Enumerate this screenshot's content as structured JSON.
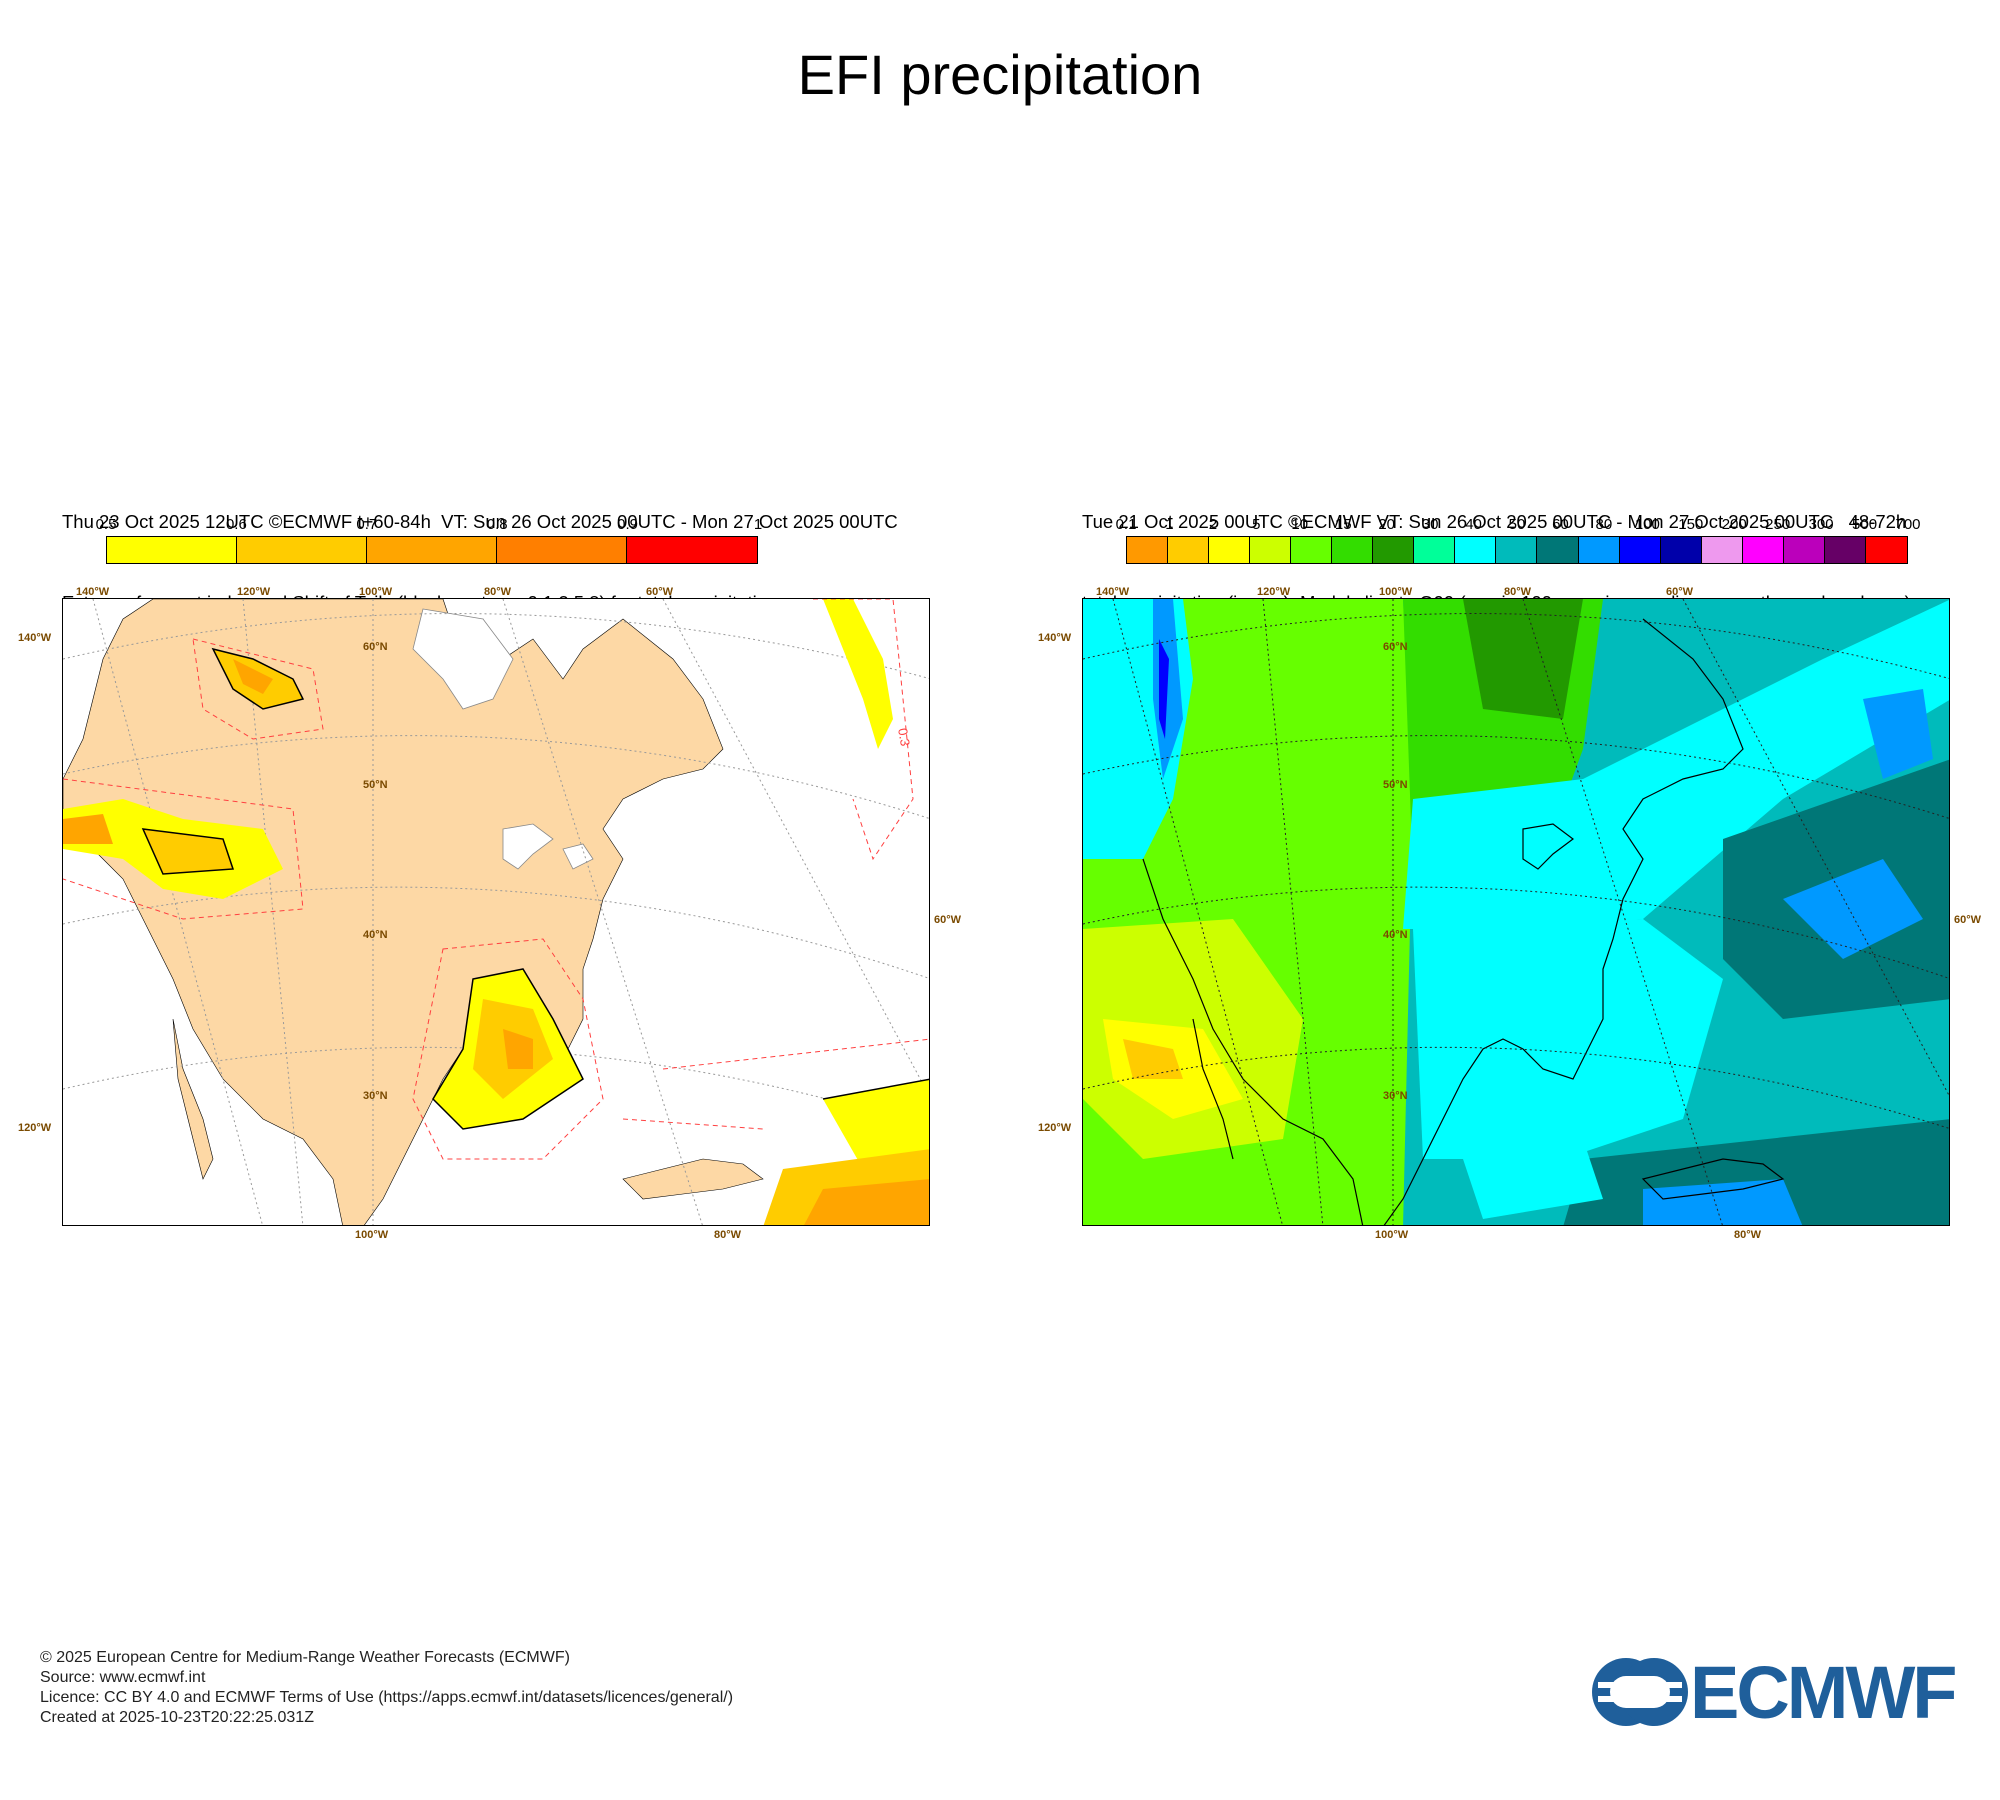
{
  "title": "EFI precipitation",
  "left_panel": {
    "line1": "Thu 23 Oct 2025 12UTC ©ECMWF t+60-84h  VT: Sun 26 Oct 2025 00UTC - Mon 27 Oct 2025 00UTC",
    "line2": "Extreme forecast index and Shift of Tails (black contours 0,1,2,5,8) for total precipitation",
    "colorbar": {
      "labels": [
        "0.5",
        "0.6",
        "0.7",
        "0.8",
        "0.9",
        "1"
      ],
      "colors": [
        "#ffff00",
        "#ffcc00",
        "#ffa500",
        "#ff7f00",
        "#ff0000"
      ]
    },
    "lon_labels_top": [
      "140°W",
      "120°W",
      "100°W",
      "80°W",
      "60°W"
    ],
    "lon_labels_bottom": [
      "100°W",
      "80°W"
    ],
    "lat_labels_inside": [
      "60°N",
      "50°N",
      "40°N",
      "30°N"
    ],
    "side_labels_left": [
      "140°W",
      "120°W"
    ],
    "side_labels_right": [
      "60°W"
    ],
    "contour_label": "0.3"
  },
  "right_panel": {
    "line1": "Tue 21 Oct 2025 00UTC ©ECMWF VT: Sun 26 Oct 2025 00UTC - Mon 27 Oct 2025 00UTC   48-72h",
    "line2": "total precipitation (in mm)  Model climate Q99 (one in 100 occasions realises more than value shown)",
    "colorbar": {
      "labels": [
        "0.1",
        "1",
        "2",
        "5",
        "10",
        "15",
        "20",
        "30",
        "40",
        "50",
        "60",
        "80",
        "100",
        "150",
        "200",
        "250",
        "300",
        "500",
        "700"
      ],
      "colors": [
        "#ff9900",
        "#ffcc00",
        "#ffff00",
        "#ccff00",
        "#66ff00",
        "#33dd00",
        "#229900",
        "#00ff99",
        "#00ffff",
        "#00bbbb",
        "#007777",
        "#0099ff",
        "#0000ff",
        "#0000aa",
        "#ee99ee",
        "#ff00ff",
        "#bb00bb",
        "#660066",
        "#ff0000"
      ]
    },
    "lon_labels_top": [
      "140°W",
      "120°W",
      "100°W",
      "80°W",
      "60°W"
    ],
    "lon_labels_bottom": [
      "100°W",
      "80°W"
    ],
    "lat_labels_inside": [
      "60°N",
      "50°N",
      "40°N",
      "30°N"
    ],
    "side_labels_left": [
      "140°W",
      "120°W"
    ],
    "side_labels_right": [
      "60°W"
    ]
  },
  "footer": {
    "copyright": "© 2025 European Centre for Medium-Range Weather Forecasts (ECMWF)",
    "source": "Source: www.ecmwf.int",
    "licence": "Licence: CC BY 4.0 and ECMWF Terms of Use (https://apps.ecmwf.int/datasets/licences/general/)",
    "created": "Created at 2025-10-23T20:22:25.031Z"
  },
  "logo": {
    "text": "ECMWF",
    "color": "#1f5f9b"
  }
}
